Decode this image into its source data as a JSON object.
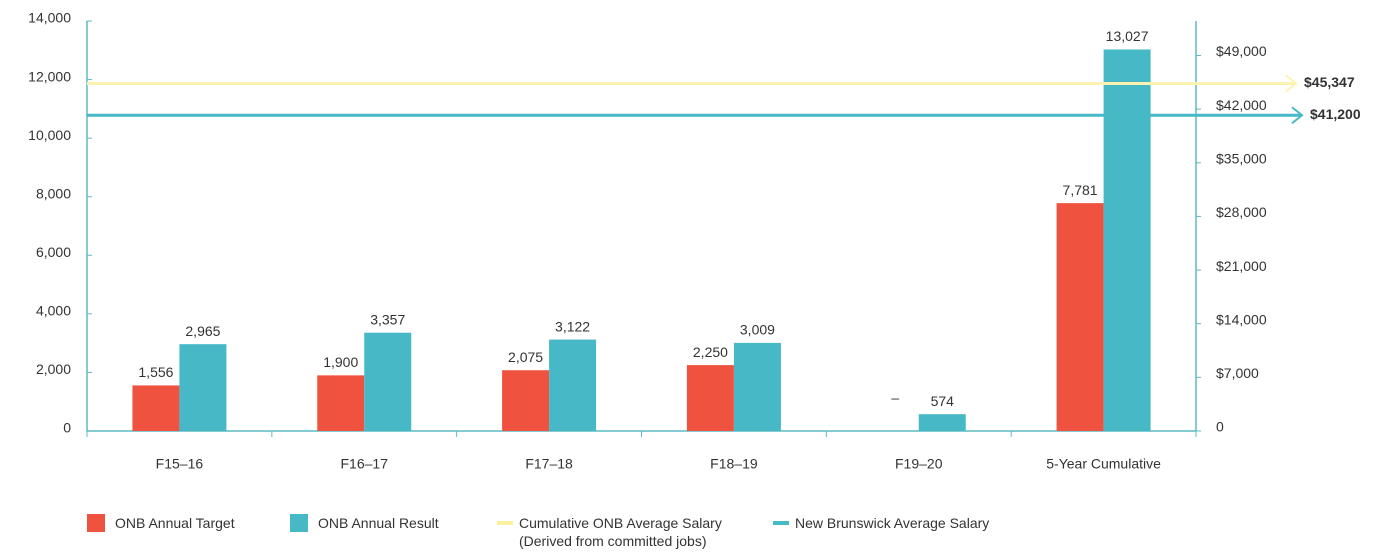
{
  "chart_data": {
    "type": "bar",
    "categories": [
      "F15–16",
      "F16–17",
      "F17–18",
      "F18–19",
      "F19–20",
      "5-Year Cumulative"
    ],
    "series": [
      {
        "name": "ONB Annual Target",
        "color": "#ef5340",
        "values": [
          1556,
          1900,
          2075,
          2250,
          null,
          7781
        ],
        "value_labels": [
          "1,556",
          "1,900",
          "2,075",
          "2,250",
          "–",
          "7,781"
        ]
      },
      {
        "name": "ONB Annual Result",
        "color": "#47b9c6",
        "values": [
          2965,
          3357,
          3122,
          3009,
          574,
          13027
        ],
        "value_labels": [
          "2,965",
          "3,357",
          "3,122",
          "3,009",
          "574",
          "13,027"
        ]
      }
    ],
    "lines": [
      {
        "name": "Cumulative ONB Average Salary (Derived from committed jobs)",
        "color": "#fdf3b0",
        "value": 45347,
        "label": "$45,347",
        "axis": "y2"
      },
      {
        "name": "New Brunswick Average Salary",
        "color": "#47b9c6",
        "value": 41200,
        "label": "$41,200",
        "axis": "y2"
      }
    ],
    "ylim": [
      0,
      14000
    ],
    "yticks": [
      0,
      {
        "value": 2000,
        "label": "2,000"
      },
      {
        "value": 4000,
        "label": "4,000"
      },
      {
        "value": 6000,
        "label": "6,000"
      },
      {
        "value": 8000,
        "label": "8,000"
      },
      {
        "value": 10000,
        "label": "10,000"
      },
      {
        "value": 12000,
        "label": "12,000"
      },
      {
        "value": 14000,
        "label": "14,000"
      }
    ],
    "y2lim": [
      0,
      53500
    ],
    "y2ticks": [
      0,
      {
        "value": 7000,
        "label": "$7,000"
      },
      {
        "value": 14000,
        "label": "$14,000"
      },
      {
        "value": 21000,
        "label": "$21,000"
      },
      {
        "value": 28000,
        "label": "$28,000"
      },
      {
        "value": 35000,
        "label": "$35,000"
      },
      {
        "value": 42000,
        "label": "$42,000"
      },
      {
        "value": 49000,
        "label": "$49,000"
      }
    ],
    "axis_color": "#5bbcc4"
  }
}
